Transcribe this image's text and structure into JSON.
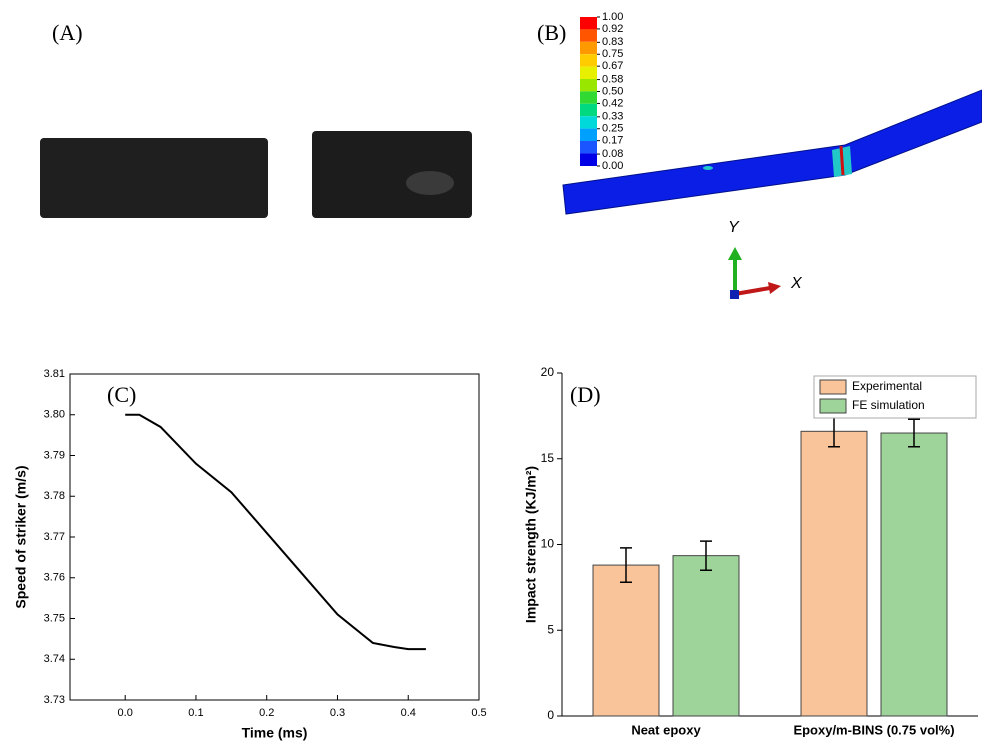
{
  "panels": {
    "a": {
      "label": "(A)"
    },
    "b": {
      "label": "(B)",
      "contour_ticks": [
        {
          "value": 1,
          "label": "1.00"
        },
        0.92,
        0.83,
        0.75,
        0.67,
        0.58,
        {
          "value": 0.5,
          "label": "0.50"
        },
        0.42,
        0.33,
        0.25,
        0.17,
        0.08,
        {
          "value": 0,
          "label": "0.00"
        }
      ],
      "axis_y": "Y",
      "axis_x": "X"
    }
  },
  "chart_data": [
    {
      "type": "line",
      "panel_label": "(C)",
      "x_label": "Time (ms)",
      "y_label": "Speed of striker (m/s)",
      "x": [
        0,
        0.02,
        0.05,
        0.1,
        0.15,
        0.2,
        0.25,
        0.3,
        0.35,
        0.38,
        0.4,
        0.425
      ],
      "values": [
        3.8,
        3.8,
        3.797,
        3.788,
        3.781,
        3.771,
        3.761,
        3.751,
        3.744,
        3.743,
        3.7425,
        3.7425
      ],
      "color": "#000000",
      "xlim": [
        -0.078,
        0.5
      ],
      "xticks": [
        {
          "value": 0,
          "label": "0.0"
        },
        0.1,
        0.2,
        0.3,
        0.4,
        0.5
      ],
      "ylim": [
        3.73,
        3.81
      ],
      "yticks": [
        3.73,
        3.74,
        3.75,
        3.76,
        3.77,
        3.78,
        3.79,
        {
          "value": 3.8,
          "label": "3.80"
        },
        3.81
      ],
      "grid": false
    },
    {
      "type": "bar",
      "panel_label": "(D)",
      "y_label": "Impact strength (KJ/m²)",
      "categories": [
        "Neat epoxy",
        "Epoxy/m-BINS (0.75 vol%)"
      ],
      "series": [
        {
          "name": "Experimental",
          "color": "#f9c49a",
          "values": [
            8.8,
            16.6
          ],
          "errors": [
            1.0,
            0.9
          ]
        },
        {
          "name": "FE simulation",
          "color": "#9ed49a",
          "values": [
            9.35,
            16.5
          ],
          "errors": [
            0.85,
            0.8
          ]
        }
      ],
      "ylim": [
        0,
        20
      ],
      "yticks": [
        0,
        5,
        10,
        15,
        20
      ],
      "grid": false,
      "legend": "top-right"
    }
  ]
}
